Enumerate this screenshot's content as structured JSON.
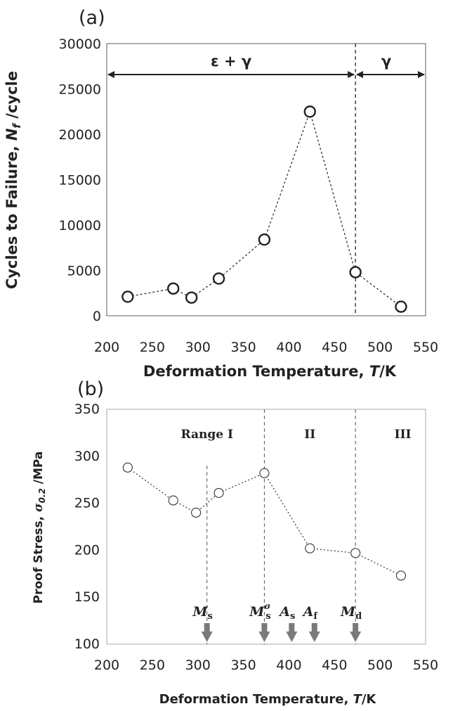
{
  "chart_data": [
    {
      "panel": "(a)",
      "type": "line",
      "xlabel": "Deformation Temperature, ",
      "xlabel_var": "T",
      "xlabel_unit": "/K",
      "ylabel": "Cycles to Failure, ",
      "ylabel_var": "N",
      "ylabel_sub": "f",
      "ylabel_unit": " /cycle",
      "xlim": [
        200,
        550
      ],
      "ylim": [
        0,
        30000
      ],
      "xticks": [
        200,
        250,
        300,
        350,
        400,
        450,
        500,
        550
      ],
      "yticks": [
        0,
        5000,
        10000,
        15000,
        20000,
        25000,
        30000
      ],
      "x": [
        223,
        273,
        293,
        323,
        373,
        423,
        473,
        523
      ],
      "y": [
        2100,
        3000,
        2000,
        4100,
        8400,
        22500,
        4800,
        1000
      ],
      "vline": 473,
      "annotations": [
        {
          "text": "ε + γ",
          "from": 200,
          "to": 473
        },
        {
          "text": "γ",
          "from": 473,
          "to": 550
        }
      ]
    },
    {
      "panel": "(b)",
      "type": "line",
      "xlabel": "Deformation Temperature, ",
      "xlabel_var": "T",
      "xlabel_unit": "/K",
      "ylabel": "Proof Stress, ",
      "ylabel_var": "σ",
      "ylabel_sub": "0.2",
      "ylabel_unit": " /MPa",
      "xlim": [
        200,
        550
      ],
      "ylim": [
        100,
        350
      ],
      "xticks": [
        200,
        250,
        300,
        350,
        400,
        450,
        500,
        550
      ],
      "yticks": [
        100,
        150,
        200,
        250,
        300,
        350
      ],
      "x": [
        223,
        273,
        298,
        323,
        373,
        423,
        473,
        523
      ],
      "y": [
        288,
        253,
        240,
        261,
        282,
        202,
        197,
        173
      ],
      "ranges": [
        {
          "label": "Range  I",
          "x": 310
        },
        {
          "label": "II",
          "x": 423
        },
        {
          "label": "III",
          "x": 525
        }
      ],
      "range_lines": [
        {
          "x": 373,
          "y_top": 350
        },
        {
          "x": 473,
          "y_top": 350
        },
        {
          "x": 310,
          "y_top": 290
        }
      ],
      "markers": [
        {
          "label": "M",
          "sub": "s",
          "sup": "",
          "x": 310
        },
        {
          "label": "M",
          "sub": "s",
          "sup": "σ",
          "x": 373
        },
        {
          "label": "A",
          "sub": "s",
          "sup": "",
          "x": 403
        },
        {
          "label": "A",
          "sub": "f",
          "sup": "",
          "x": 428
        },
        {
          "label": "M",
          "sub": "d",
          "sup": "",
          "x": 473
        }
      ]
    }
  ]
}
